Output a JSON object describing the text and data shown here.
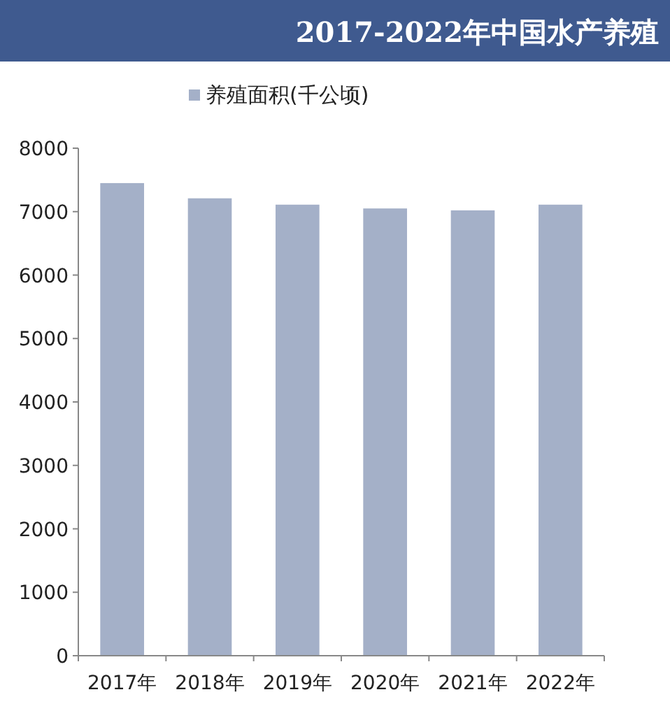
{
  "chart_data": {
    "type": "bar",
    "title": "2017-2022年中国水产养殖",
    "categories": [
      "2017年",
      "2018年",
      "2019年",
      "2020年",
      "2021年",
      "2022年"
    ],
    "series": [
      {
        "name": "养殖面积(千公顷)",
        "color": "#a4b0c8",
        "values": [
          7450,
          7210,
          7110,
          7050,
          7020,
          7110
        ]
      }
    ],
    "ylim": [
      0,
      8000
    ],
    "yticks": [
      0,
      1000,
      2000,
      3000,
      4000,
      5000,
      6000,
      7000,
      8000
    ],
    "grid": false,
    "legend": "top"
  }
}
